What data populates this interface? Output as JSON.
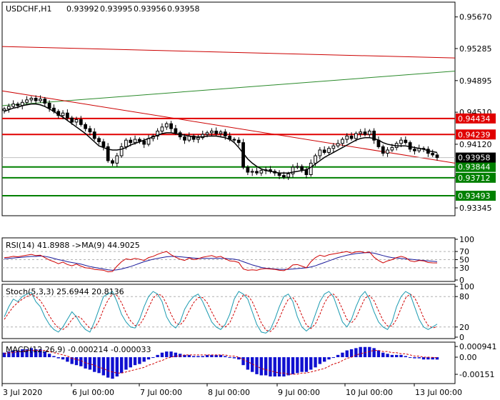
{
  "chart_data": {
    "type": "candlestick",
    "header": {
      "symbol": "USDCHF,H1",
      "ohlc": [
        "0.93992",
        "0.93995",
        "0.93956",
        "0.93958"
      ]
    },
    "main_axis": {
      "ylim": [
        0.9325,
        0.9585
      ],
      "ticks": [
        "0.95670",
        "0.95285",
        "0.94895",
        "0.94510",
        "0.94120",
        "0.93730",
        "0.93345"
      ],
      "tick_values": [
        0.9567,
        0.95285,
        0.94895,
        0.9451,
        0.9412,
        0.9373,
        0.93345
      ]
    },
    "x_labels": [
      "3 Jul 2020",
      "6 Jul 00:00",
      "7 Jul 00:00",
      "8 Jul 00:00",
      "9 Jul 00:00",
      "10 Jul 00:00",
      "13 Jul 00:00"
    ],
    "current_price": {
      "label": "0.93958",
      "value": 0.93958
    },
    "levels": [
      {
        "label": "0.94434",
        "value": 0.94434,
        "color": "#e00000"
      },
      {
        "label": "0.94239",
        "value": 0.94239,
        "color": "#e00000"
      },
      {
        "label": "0.93844",
        "value": 0.93844,
        "color": "#008000"
      },
      {
        "label": "0.93712",
        "value": 0.93712,
        "color": "#008000"
      },
      {
        "label": "0.93493",
        "value": 0.93493,
        "color": "#008000"
      }
    ],
    "trendlines": [
      {
        "color": "#cc0000",
        "start": 0.9531,
        "end": 0.9517
      },
      {
        "color": "#2a8a2a",
        "start": 0.9459,
        "end": 0.9501
      },
      {
        "color": "#cc0000",
        "start": 0.9477,
        "end": 0.9389
      }
    ],
    "closes": [
      0.9455,
      0.9458,
      0.9461,
      0.9459,
      0.9463,
      0.9466,
      0.9468,
      0.9465,
      0.9467,
      0.9462,
      0.9456,
      0.9452,
      0.9447,
      0.945,
      0.9444,
      0.9439,
      0.9442,
      0.9436,
      0.9431,
      0.9427,
      0.9419,
      0.9415,
      0.9409,
      0.9392,
      0.9389,
      0.9398,
      0.9409,
      0.9417,
      0.9414,
      0.9418,
      0.9416,
      0.9412,
      0.9419,
      0.9422,
      0.9428,
      0.9433,
      0.9437,
      0.9431,
      0.9426,
      0.9421,
      0.9417,
      0.9422,
      0.9418,
      0.942,
      0.9424,
      0.9426,
      0.9428,
      0.9425,
      0.9427,
      0.9422,
      0.9418,
      0.9417,
      0.9414,
      0.9384,
      0.9378,
      0.9379,
      0.9377,
      0.938,
      0.9381,
      0.9379,
      0.9377,
      0.9374,
      0.9372,
      0.9376,
      0.9384,
      0.9385,
      0.9381,
      0.9375,
      0.9389,
      0.9398,
      0.9405,
      0.9402,
      0.9407,
      0.941,
      0.9413,
      0.9418,
      0.9422,
      0.9419,
      0.9425,
      0.9427,
      0.9424,
      0.9428,
      0.9417,
      0.9409,
      0.9401,
      0.9405,
      0.9408,
      0.9413,
      0.9417,
      0.9414,
      0.9406,
      0.9404,
      0.9407,
      0.9406,
      0.9401,
      0.9399,
      0.93958
    ],
    "ma_line": [
      0.9452,
      0.9454,
      0.9456,
      0.9457,
      0.9459,
      0.946,
      0.9461,
      0.9461,
      0.946,
      0.9458,
      0.9455,
      0.9452,
      0.9448,
      0.9445,
      0.9441,
      0.9437,
      0.9433,
      0.9429,
      0.9425,
      0.942,
      0.9415,
      0.941,
      0.9408,
      0.9406,
      0.9405,
      0.9405,
      0.9406,
      0.9408,
      0.9411,
      0.9413,
      0.9415,
      0.9417,
      0.9419,
      0.9421,
      0.9423,
      0.9425,
      0.9426,
      0.9426,
      0.9425,
      0.9424,
      0.9423,
      0.9422,
      0.9421,
      0.9421,
      0.9421,
      0.9422,
      0.9422,
      0.9422,
      0.9421,
      0.942,
      0.9418,
      0.9414,
      0.9408,
      0.9401,
      0.9394,
      0.9389,
      0.9385,
      0.9382,
      0.938,
      0.9379,
      0.9378,
      0.9377,
      0.9377,
      0.9377,
      0.9378,
      0.9379,
      0.938,
      0.9381,
      0.9384,
      0.9388,
      0.9392,
      0.9396,
      0.9399,
      0.9402,
      0.9405,
      0.9408,
      0.9411,
      0.9414,
      0.9417,
      0.9419,
      0.942,
      0.942,
      0.9419,
      0.9417,
      0.9414,
      0.9412,
      0.9411,
      0.941,
      0.941,
      0.941,
      0.9409,
      0.9408,
      0.9407,
      0.9406,
      0.9404,
      0.9403,
      0.9402
    ],
    "rsi": {
      "header": "RSI(14) 41.8988  ->MA(9) 44.9025",
      "ylim": [
        0,
        100
      ],
      "ticks": [
        "100",
        "70",
        "50",
        "30",
        "0"
      ],
      "tick_values": [
        100,
        70,
        50,
        30,
        0
      ],
      "values": [
        55,
        56,
        58,
        57,
        59,
        61,
        63,
        60,
        61,
        55,
        49,
        45,
        40,
        44,
        38,
        35,
        39,
        34,
        30,
        29,
        26,
        25,
        24,
        20,
        21,
        34,
        45,
        52,
        50,
        53,
        51,
        48,
        55,
        58,
        63,
        67,
        70,
        62,
        56,
        51,
        48,
        54,
        50,
        52,
        56,
        58,
        60,
        56,
        58,
        52,
        47,
        46,
        43,
        27,
        24,
        25,
        24,
        27,
        28,
        27,
        26,
        24,
        23,
        28,
        37,
        38,
        34,
        30,
        45,
        55,
        61,
        58,
        62,
        64,
        66,
        68,
        70,
        66,
        69,
        70,
        67,
        69,
        56,
        48,
        42,
        47,
        50,
        55,
        58,
        55,
        47,
        45,
        48,
        47,
        43,
        42,
        41.9
      ],
      "ma_values": [
        52,
        53,
        54,
        55,
        56,
        57,
        58,
        58,
        59,
        58,
        56,
        53,
        50,
        48,
        45,
        43,
        41,
        39,
        36,
        33,
        31,
        29,
        27,
        25,
        24,
        25,
        27,
        30,
        33,
        37,
        41,
        45,
        48,
        51,
        53,
        55,
        57,
        58,
        58,
        57,
        56,
        55,
        54,
        53,
        53,
        53,
        53,
        53,
        53,
        53,
        52,
        51,
        49,
        45,
        41,
        37,
        34,
        31,
        29,
        28,
        27,
        26,
        26,
        26,
        27,
        28,
        29,
        30,
        32,
        35,
        39,
        43,
        47,
        51,
        55,
        58,
        61,
        63,
        65,
        66,
        67,
        67,
        66,
        63,
        60,
        57,
        55,
        54,
        53,
        52,
        51,
        50,
        49,
        48,
        47,
        46,
        44.9
      ]
    },
    "stoch": {
      "header": "Stoch(5,3,3) 25.6944 20.8136",
      "ylim": [
        0,
        100
      ],
      "ticks": [
        "100",
        "80",
        "20",
        "0"
      ],
      "tick_values": [
        100,
        80,
        20,
        0
      ],
      "values": [
        40,
        60,
        75,
        70,
        80,
        85,
        88,
        70,
        60,
        40,
        25,
        15,
        10,
        20,
        35,
        50,
        40,
        25,
        15,
        10,
        30,
        55,
        80,
        85,
        90,
        70,
        45,
        30,
        20,
        18,
        35,
        60,
        80,
        90,
        85,
        70,
        40,
        25,
        18,
        30,
        55,
        70,
        80,
        85,
        70,
        50,
        30,
        20,
        15,
        25,
        45,
        75,
        90,
        85,
        75,
        50,
        25,
        10,
        8,
        15,
        35,
        60,
        80,
        85,
        70,
        40,
        20,
        12,
        20,
        45,
        70,
        85,
        90,
        80,
        55,
        30,
        20,
        35,
        60,
        80,
        90,
        75,
        50,
        30,
        20,
        15,
        30,
        60,
        80,
        90,
        85,
        60,
        35,
        20,
        15,
        20,
        25.7
      ],
      "signal_values": [
        35,
        48,
        60,
        68,
        75,
        80,
        84,
        80,
        72,
        58,
        42,
        28,
        18,
        15,
        22,
        35,
        42,
        38,
        27,
        17,
        18,
        32,
        55,
        73,
        85,
        82,
        68,
        48,
        32,
        23,
        24,
        38,
        58,
        77,
        85,
        82,
        65,
        45,
        28,
        24,
        34,
        52,
        68,
        78,
        78,
        68,
        50,
        33,
        22,
        20,
        28,
        48,
        70,
        83,
        83,
        70,
        50,
        28,
        14,
        11,
        19,
        37,
        58,
        75,
        78,
        65,
        43,
        24,
        17,
        26,
        45,
        67,
        82,
        85,
        75,
        55,
        35,
        28,
        38,
        58,
        77,
        82,
        72,
        52,
        33,
        22,
        22,
        35,
        57,
        77,
        85,
        78,
        60,
        38,
        23,
        18,
        20.8
      ]
    },
    "macd": {
      "header": "MACD(12,26,9) -0.000214 -0.000033",
      "ylim": [
        -0.0022,
        0.0012
      ],
      "ticks": [
        "0.000941",
        "0.00",
        "-0.00151"
      ],
      "tick_values": [
        0.000941,
        0,
        -0.00151
      ],
      "hist": [
        0.0004,
        0.0005,
        0.0006,
        0.0006,
        0.0007,
        0.0007,
        0.0008,
        0.0007,
        0.0007,
        0.0005,
        0.0003,
        0.0001,
        -0.0001,
        -0.0002,
        -0.0004,
        -0.0006,
        -0.0007,
        -0.0008,
        -0.001,
        -0.0011,
        -0.0013,
        -0.0014,
        -0.0016,
        -0.0018,
        -0.0019,
        -0.0017,
        -0.0014,
        -0.0011,
        -0.0009,
        -0.0007,
        -0.0006,
        -0.0004,
        -0.0002,
        0.0,
        0.0002,
        0.0004,
        0.0005,
        0.0005,
        0.0004,
        0.0003,
        0.0002,
        0.0002,
        0.0001,
        0.0001,
        0.0001,
        0.0002,
        0.0002,
        0.0002,
        0.0002,
        0.0001,
        0.0,
        -0.0001,
        -0.0002,
        -0.0007,
        -0.0011,
        -0.0013,
        -0.0015,
        -0.0016,
        -0.0016,
        -0.0017,
        -0.0017,
        -0.0017,
        -0.0017,
        -0.0016,
        -0.0015,
        -0.0014,
        -0.0013,
        -0.0013,
        -0.0011,
        -0.0009,
        -0.0006,
        -0.0004,
        -0.0002,
        0.0,
        0.0002,
        0.0004,
        0.0006,
        0.0007,
        0.0008,
        0.0009,
        0.0009,
        0.0009,
        0.0008,
        0.0006,
        0.0004,
        0.0003,
        0.0002,
        0.0002,
        0.0002,
        0.0001,
        0.0,
        -0.0001,
        -0.0001,
        -0.0002,
        -0.0002,
        -0.0002,
        -0.00021
      ],
      "signal": [
        0.0003,
        0.0004,
        0.0004,
        0.0005,
        0.0005,
        0.0006,
        0.0006,
        0.0006,
        0.0006,
        0.0006,
        0.0005,
        0.0004,
        0.0003,
        0.0002,
        0.0001,
        -0.0001,
        -0.0002,
        -0.0003,
        -0.0005,
        -0.0006,
        -0.0007,
        -0.0009,
        -0.001,
        -0.0012,
        -0.0013,
        -0.0014,
        -0.0014,
        -0.0013,
        -0.0012,
        -0.0011,
        -0.001,
        -0.0009,
        -0.0007,
        -0.0006,
        -0.0004,
        -0.0003,
        -0.0001,
        0.0,
        0.0001,
        0.0001,
        0.0002,
        0.0002,
        0.0002,
        0.0002,
        0.0002,
        0.0002,
        0.0002,
        0.0002,
        0.0002,
        0.0002,
        0.0001,
        0.0001,
        0.0,
        -0.0002,
        -0.0004,
        -0.0006,
        -0.0008,
        -0.001,
        -0.0011,
        -0.0012,
        -0.0013,
        -0.0014,
        -0.0014,
        -0.0015,
        -0.0015,
        -0.0015,
        -0.0014,
        -0.0014,
        -0.0013,
        -0.0012,
        -0.0011,
        -0.001,
        -0.0008,
        -0.0006,
        -0.0005,
        -0.0003,
        -0.0001,
        0.0,
        0.0002,
        0.0003,
        0.0004,
        0.0005,
        0.0006,
        0.0006,
        0.0005,
        0.0005,
        0.0004,
        0.0004,
        0.0003,
        0.0003,
        0.0002,
        0.0001,
        0.0001,
        0.0,
        0.0,
        -2e-05,
        -3.3e-05
      ]
    }
  }
}
